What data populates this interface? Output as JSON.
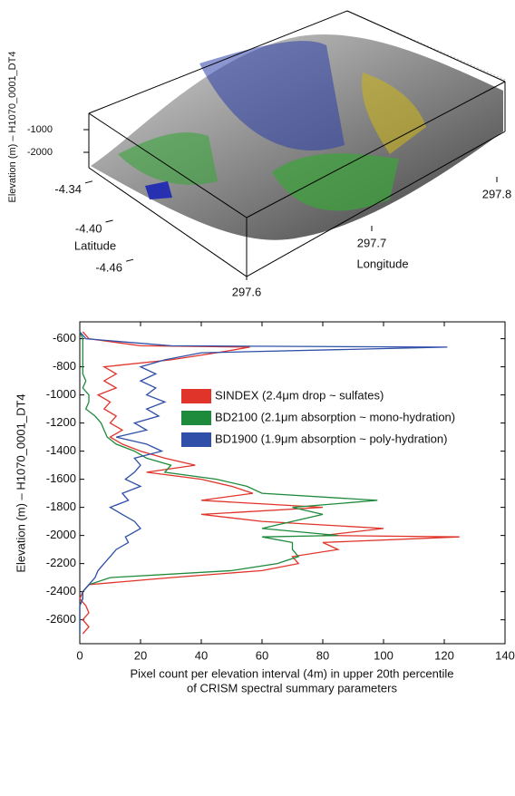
{
  "chart_data": [
    {
      "type": "surface3d",
      "zlabel": "Elevation (m) – H1070_0001_DT4",
      "zticks": [
        -1000,
        -2000
      ],
      "zlim": [
        -500,
        -2500
      ],
      "ylabel": "Latitude",
      "yticks": [
        -4.34,
        {
          "value": -4.4,
          "label": "-4.40"
        },
        -4.46
      ],
      "ylim": [
        -4.3,
        -4.5
      ],
      "xlabel": "Longitude",
      "xticks": [
        297.6,
        297.7,
        297.8
      ],
      "xlim": [
        297.55,
        297.85
      ]
    },
    {
      "type": "line",
      "ylabel": "Elevation (m) – H1070_0001_DT4",
      "xlabel": [
        "Pixel count per elevation interval (4m) in upper 20th percentile",
        "of CRISM spectral summary parameters"
      ],
      "xlim": [
        0,
        140
      ],
      "xticks": [
        0,
        20,
        40,
        60,
        80,
        100,
        120,
        140
      ],
      "ylim": [
        -2770,
        -480
      ],
      "yticks": [
        -2600,
        -2400,
        -2200,
        -2000,
        -1800,
        -1600,
        -1400,
        -1200,
        -1000,
        -800,
        -600
      ],
      "elevation": [
        -550,
        -600,
        -650,
        -660,
        -700,
        -750,
        -800,
        -850,
        -900,
        -950,
        -1000,
        -1050,
        -1100,
        -1150,
        -1200,
        -1250,
        -1300,
        -1350,
        -1400,
        -1450,
        -1500,
        -1550,
        -1600,
        -1650,
        -1700,
        -1750,
        -1800,
        -1850,
        -1900,
        -1950,
        -2000,
        -2010,
        -2050,
        -2100,
        -2150,
        -2200,
        -2250,
        -2300,
        -2350,
        -2400,
        -2450,
        -2500,
        -2550,
        -2600,
        -2650,
        -2700
      ],
      "series": [
        {
          "name": "SINDEX (2.4μm drop ~ sulfates)",
          "color": "#e0342b",
          "values": [
            1,
            3,
            20,
            56,
            45,
            30,
            8,
            12,
            8,
            12,
            6,
            10,
            8,
            12,
            10,
            14,
            10,
            14,
            20,
            28,
            38,
            22,
            40,
            50,
            57,
            40,
            80,
            40,
            60,
            100,
            80,
            125,
            80,
            85,
            70,
            72,
            60,
            30,
            3,
            1,
            0,
            2,
            3,
            1,
            3,
            1
          ]
        },
        {
          "name": "BD2100 (2.1μm absorption ~ mono-hydration)",
          "color": "#1e8a3c",
          "values": [
            0,
            1,
            1,
            1,
            1,
            1,
            1,
            1,
            2,
            1,
            3,
            3,
            2,
            5,
            7,
            8,
            9,
            12,
            18,
            22,
            30,
            28,
            45,
            55,
            60,
            98,
            70,
            80,
            70,
            60,
            85,
            60,
            70,
            70,
            72,
            65,
            50,
            10,
            3,
            1,
            1,
            0,
            0,
            0,
            0,
            0
          ]
        },
        {
          "name": "BD1900 (1.9μm absorption ~ poly-hydration)",
          "color": "#2f4fa8",
          "values": [
            0,
            2,
            30,
            121,
            40,
            28,
            20,
            25,
            20,
            25,
            22,
            28,
            22,
            26,
            18,
            22,
            12,
            22,
            27,
            18,
            20,
            18,
            15,
            20,
            14,
            16,
            10,
            14,
            18,
            20,
            16,
            15,
            16,
            12,
            10,
            8,
            6,
            5,
            3,
            1,
            1,
            0,
            0,
            0,
            0,
            0
          ]
        }
      ]
    }
  ]
}
